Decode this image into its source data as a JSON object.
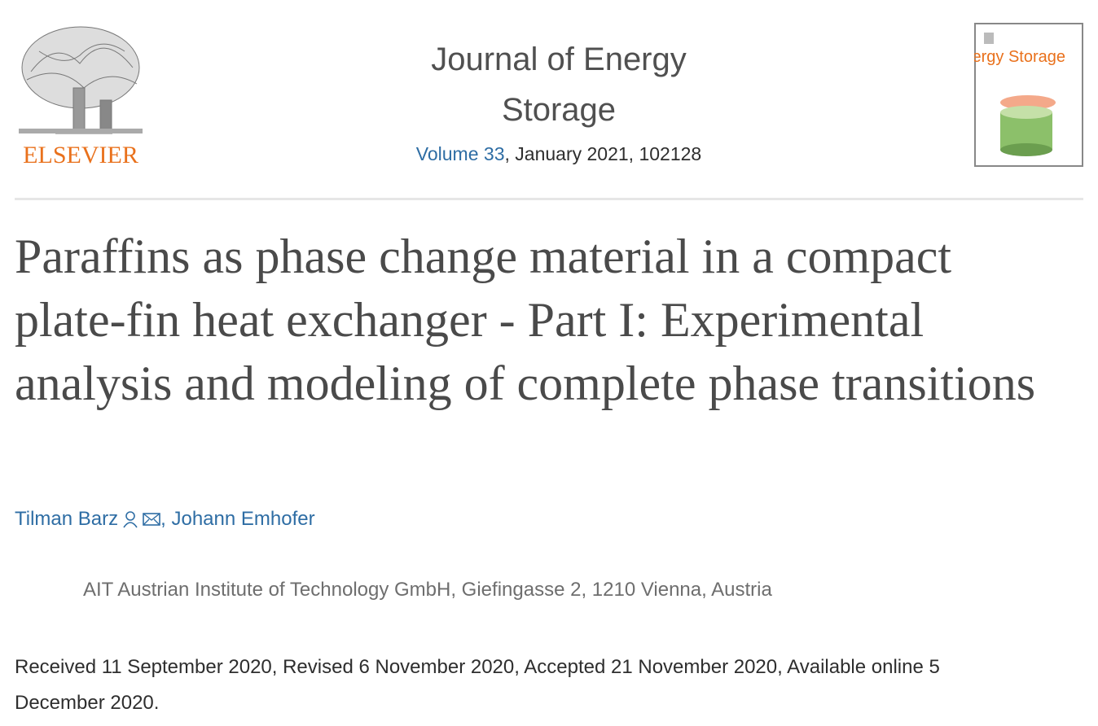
{
  "header": {
    "publisher": "ELSEVIER",
    "journal_title": "Journal of Energy Storage",
    "volume_link": "Volume 33",
    "issue_info": ", January 2021, 102128",
    "cover_title": "Energy Storage"
  },
  "article": {
    "title": "Paraffins as phase change material in a compact plate-fin heat exchanger - Part I: Experimental analysis and modeling of complete phase transitions",
    "authors": [
      "Tilman Barz",
      "Johann Emhofer"
    ],
    "author_separator": ", ",
    "affiliation": "AIT Austrian Institute of Technology GmbH, Giefingasse 2, 1210 Vienna, Austria",
    "dates": "Received 11 September 2020, Revised 6 November 2020, Accepted 21 November 2020, Available online 5 December 2020."
  }
}
